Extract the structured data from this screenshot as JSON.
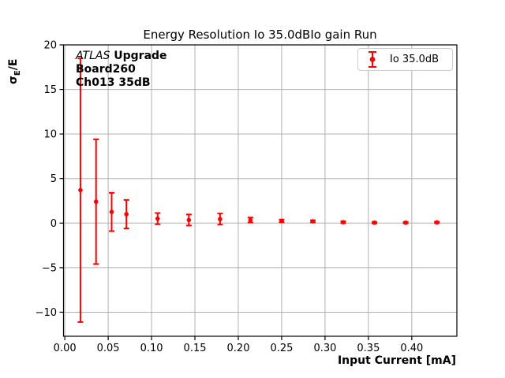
{
  "chart_data": {
    "type": "scatter",
    "title": "Energy Resolution Io 35.0dBIo gain Run",
    "xlabel": "Input Current [mA]",
    "ylabel": "σE/E",
    "ylabel_parts": {
      "sigma": "σ",
      "sub": "E",
      "rest": "/E"
    },
    "xlim": [
      -0.0015,
      0.452
    ],
    "ylim": [
      -12.7,
      20
    ],
    "grid": true,
    "grid_color": "#b0b0b0",
    "axis_color": "#000000",
    "x_ticks": [
      0.0,
      0.05,
      0.1,
      0.15,
      0.2,
      0.25,
      0.3,
      0.35,
      0.4
    ],
    "x_tick_labels": [
      "0.00",
      "0.05",
      "0.10",
      "0.15",
      "0.20",
      "0.25",
      "0.30",
      "0.35",
      "0.40"
    ],
    "y_ticks": [
      20,
      15,
      10,
      5,
      0,
      -5,
      -10
    ],
    "y_tick_labels": [
      "20",
      "15",
      "10",
      "5",
      "0",
      "−5",
      "−10"
    ],
    "legend": {
      "position": "upper right",
      "label": "Io 35.0dB",
      "marker": "errorbar-icon"
    },
    "annotation": {
      "line1_italic": "ATLAS",
      "line1_bold": " Upgrade",
      "line2": "Board260",
      "line3": "Ch013 35dB"
    },
    "series": [
      {
        "name": "Io 35.0dB",
        "color": "#ff0000",
        "marker": "circle",
        "x": [
          0.018,
          0.036,
          0.054,
          0.071,
          0.107,
          0.143,
          0.179,
          0.214,
          0.25,
          0.286,
          0.321,
          0.357,
          0.393,
          0.429
        ],
        "y": [
          3.7,
          2.4,
          1.25,
          1.0,
          0.5,
          0.35,
          0.45,
          0.35,
          0.25,
          0.2,
          0.1,
          0.05,
          0.05,
          0.08
        ],
        "yerr": [
          14.8,
          7.0,
          2.15,
          1.6,
          0.63,
          0.62,
          0.62,
          0.28,
          0.15,
          0.12,
          0.1,
          0.08,
          0.08,
          0.08
        ]
      }
    ]
  }
}
